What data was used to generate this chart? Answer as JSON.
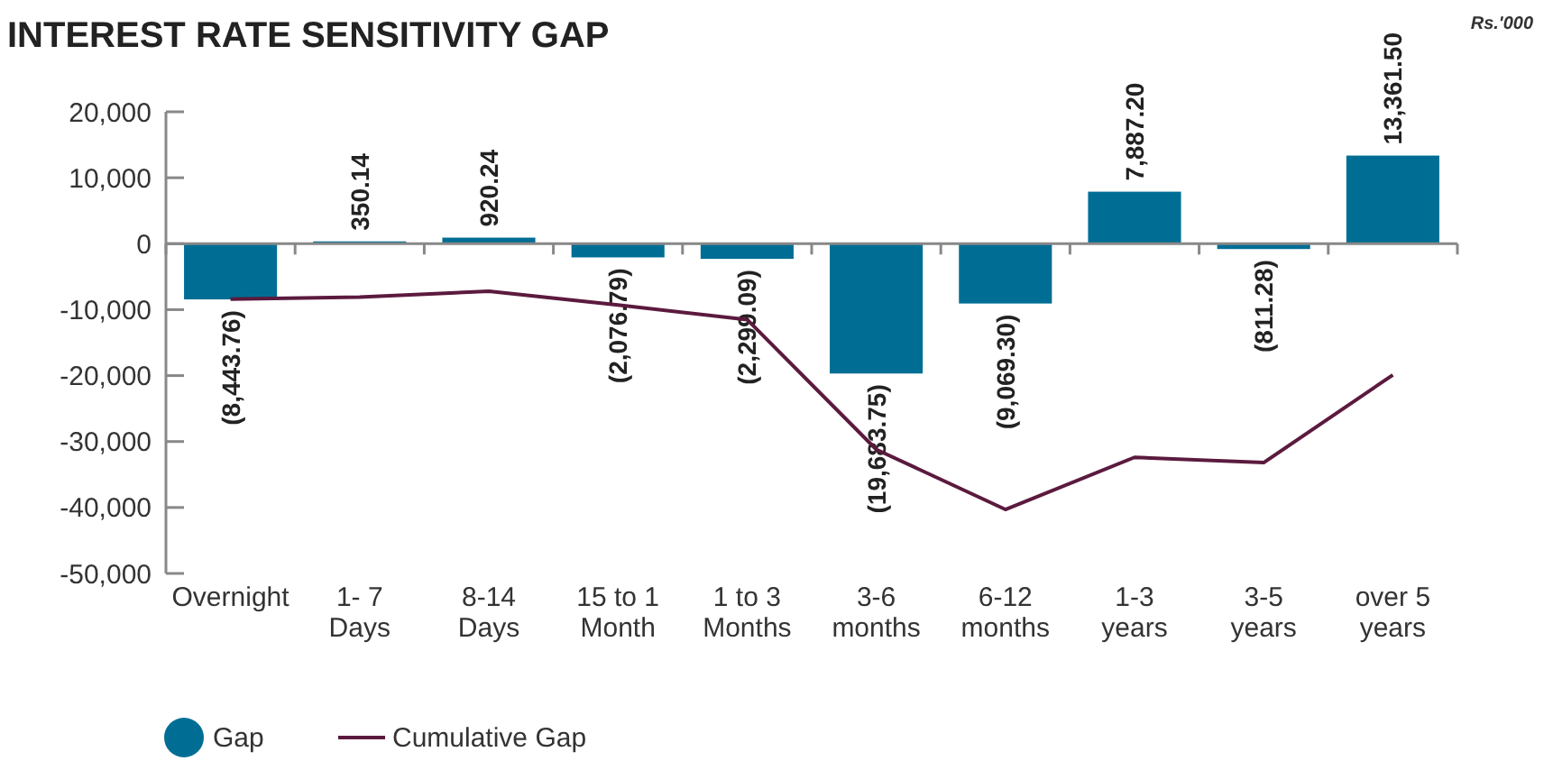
{
  "chart_data": {
    "type": "bar",
    "title": "INTEREST RATE SENSITIVITY GAP",
    "annotations": [
      "Rs.'000"
    ],
    "categories": [
      "Overnight",
      "1- 7\nDays",
      "8-14\nDays",
      "15 to 1\nMonth",
      "1 to 3\nMonths",
      "3-6\nmonths",
      "6-12\nmonths",
      "1-3\nyears",
      "3-5\nyears",
      "over 5\nyears"
    ],
    "series": [
      {
        "name": "Gap",
        "color": "#006e94",
        "values": [
          -8443.76,
          350.14,
          920.24,
          -2076.79,
          -2299.09,
          -19683.75,
          -9069.3,
          7887.2,
          -811.28,
          13361.5
        ],
        "value_labels": [
          "(8,443.76)",
          "350.14",
          "920.24",
          "(2,076.79)",
          "(2,299.09)",
          "(19,683.75)",
          "(9,069.30)",
          "7,887.20",
          "(811.28)",
          "13,361.50"
        ]
      },
      {
        "name": "Cumulative Gap",
        "type": "line",
        "color": "#5b1a3e",
        "values": [
          -8400,
          -8100,
          -7200,
          -9300,
          -11500,
          -31200,
          -40300,
          -32400,
          -33200,
          -19900
        ]
      }
    ],
    "ylim": [
      -50000,
      20000
    ],
    "yticks": [
      {
        "value": -50000,
        "label": "-50,000"
      },
      {
        "value": -40000,
        "label": "-40,000"
      },
      {
        "value": -30000,
        "label": "-30,000"
      },
      {
        "value": -20000,
        "label": "-20,000"
      },
      {
        "value": -10000,
        "label": "-10,000"
      },
      0,
      {
        "value": 10000,
        "label": "10,000"
      },
      {
        "value": 20000,
        "label": "20,000"
      }
    ],
    "legend": "bottom left"
  }
}
